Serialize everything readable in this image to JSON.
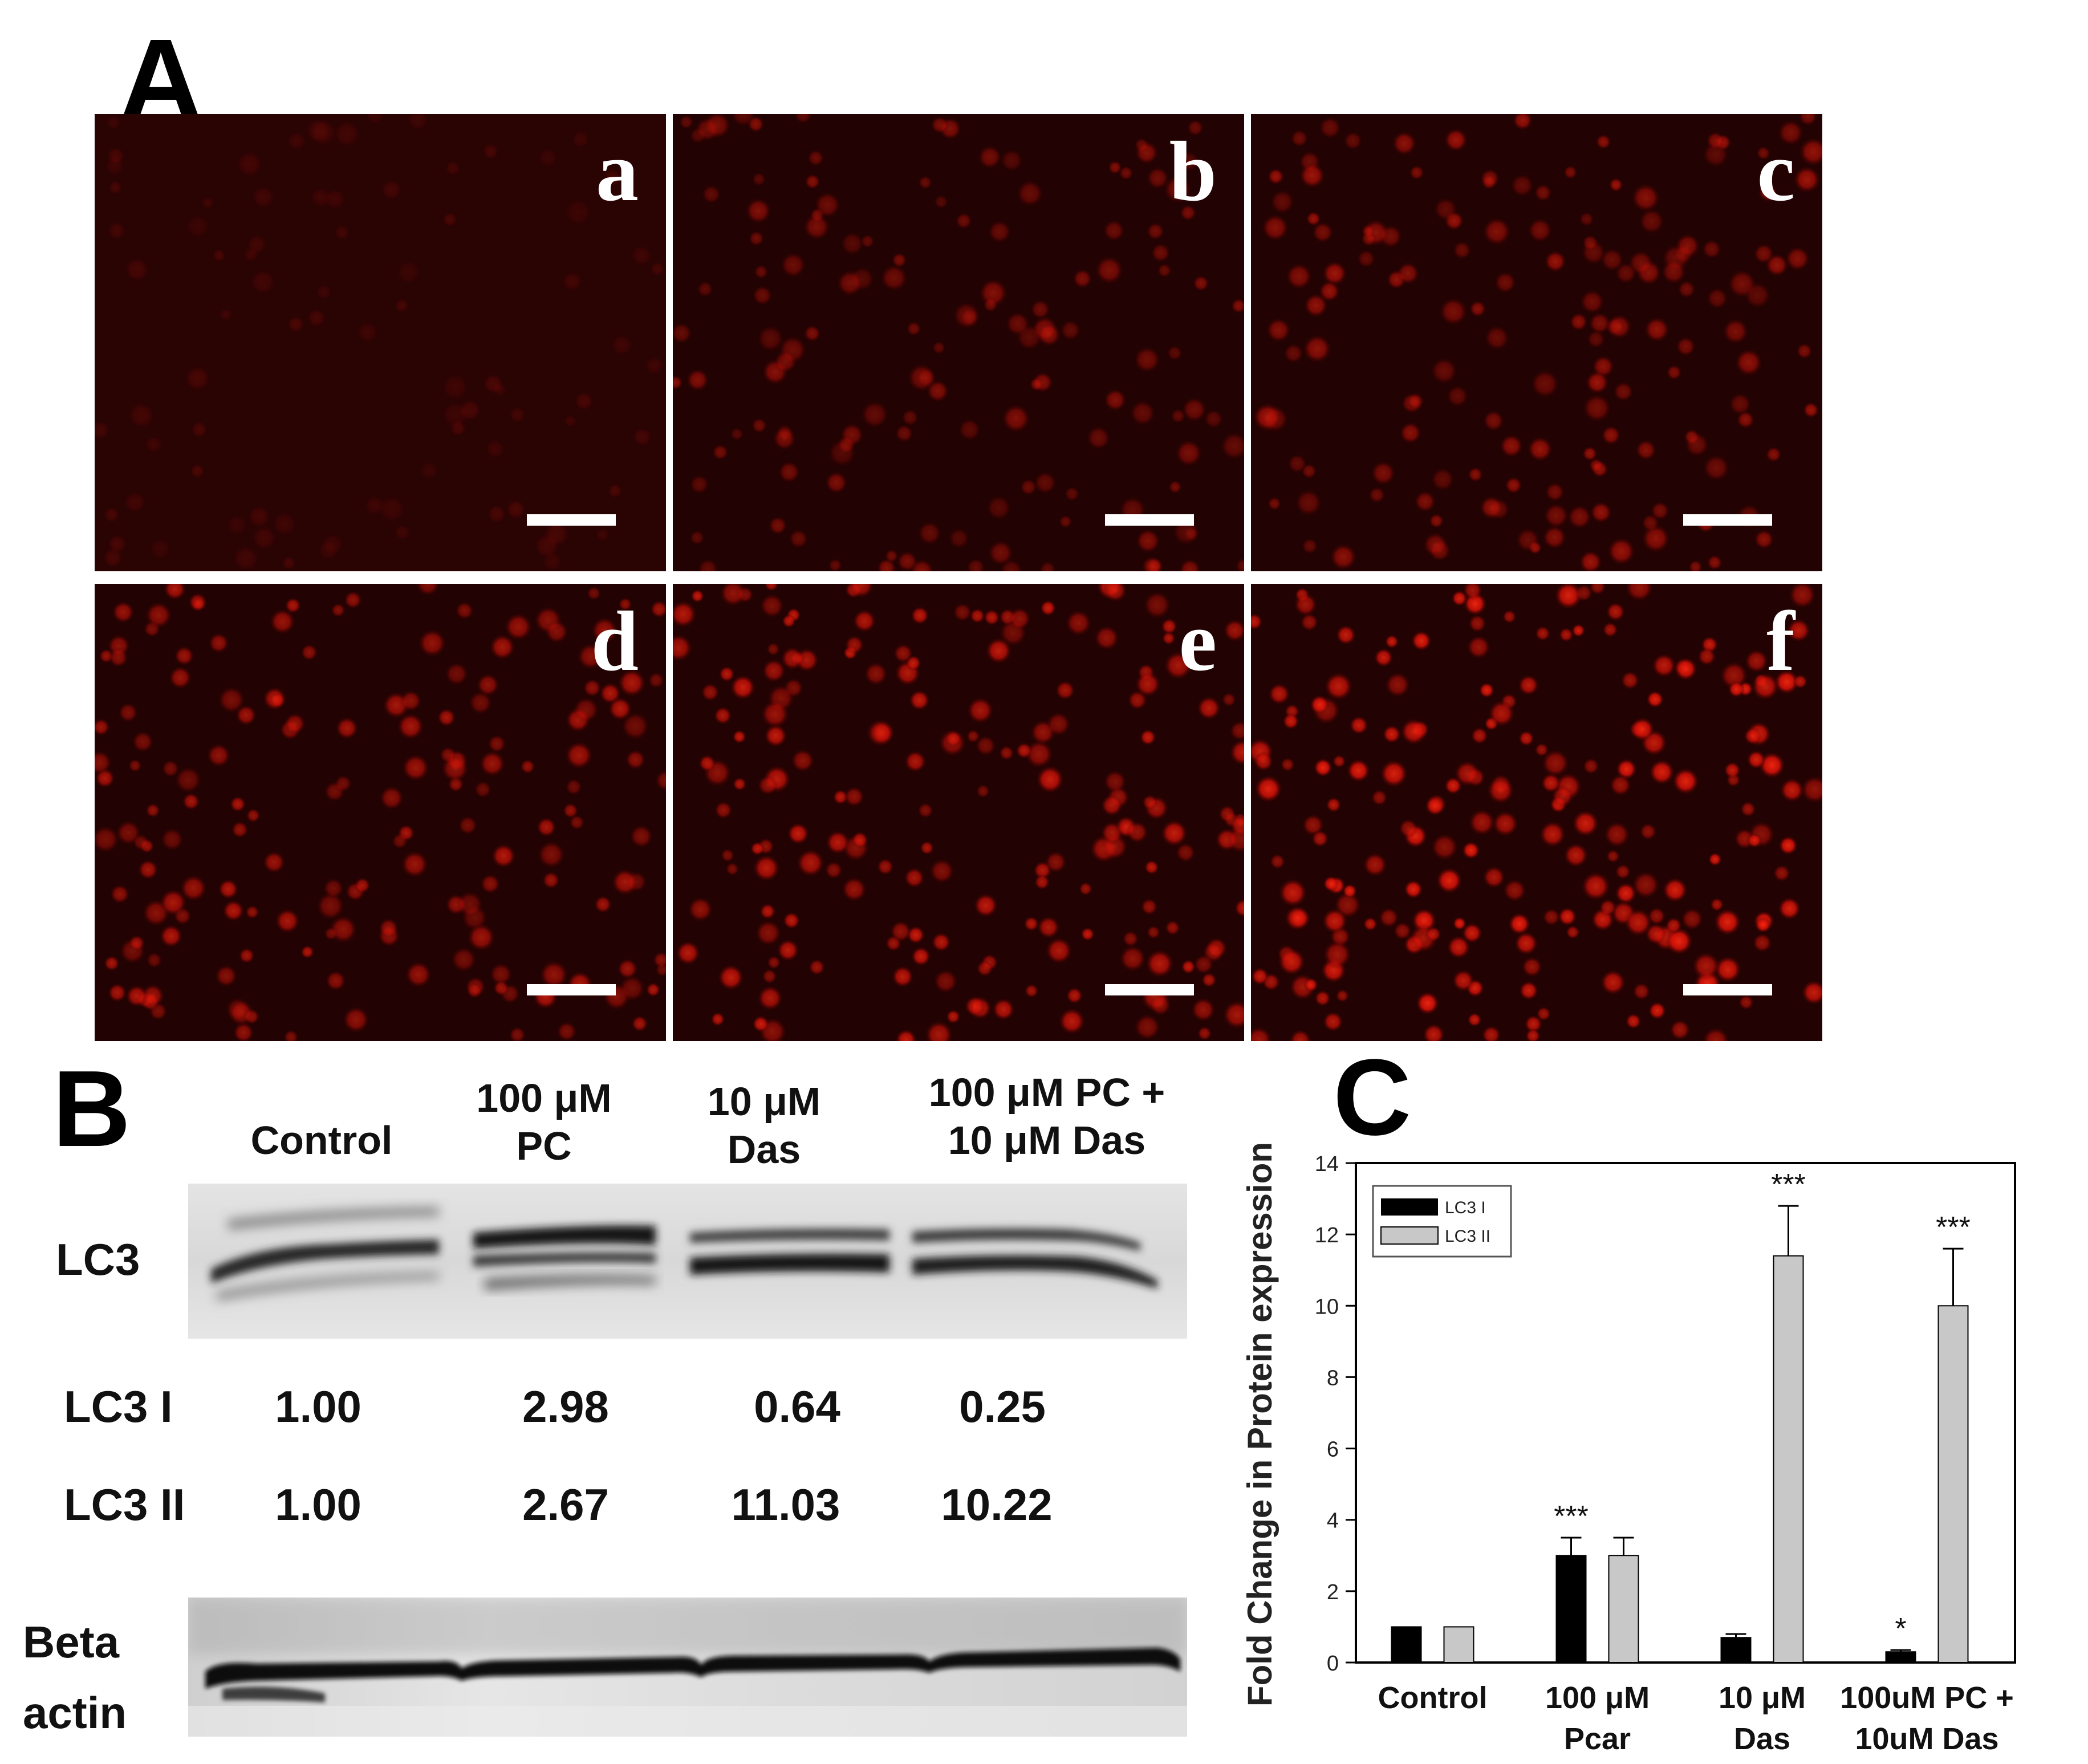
{
  "panel_a": {
    "letter": "A",
    "images": [
      {
        "letter": "a",
        "intensity": 0.15
      },
      {
        "letter": "b",
        "intensity": 0.45
      },
      {
        "letter": "c",
        "intensity": 0.55
      },
      {
        "letter": "d",
        "intensity": 0.65
      },
      {
        "letter": "e",
        "intensity": 0.75
      },
      {
        "letter": "f",
        "intensity": 0.9
      }
    ]
  },
  "panel_b": {
    "letter": "B",
    "lanes": [
      {
        "line1": "Control",
        "line2": ""
      },
      {
        "line1": "100 μM",
        "line2": "PC"
      },
      {
        "line1": "10 μM",
        "line2": "Das"
      },
      {
        "line1": "100 μM PC +",
        "line2": "10 μM Das"
      }
    ],
    "blot_label": "LC3",
    "quant_rows": [
      {
        "label": "LC3 I",
        "values": [
          "1.00",
          "2.98",
          "0.64",
          "0.25"
        ]
      },
      {
        "label": "LC3 II",
        "values": [
          "1.00",
          "2.67",
          "11.03",
          "10.22"
        ]
      }
    ],
    "loading_label_line1": "Beta",
    "loading_label_line2": "actin"
  },
  "panel_c": {
    "letter": "C"
  },
  "chart_data": {
    "type": "bar",
    "categories": [
      {
        "line1": "Control",
        "line2": ""
      },
      {
        "line1": "100 μM",
        "line2": "Pcar"
      },
      {
        "line1": "10 μM",
        "line2": "Das"
      },
      {
        "line1": "100uM PC +",
        "line2": "10uM Das"
      }
    ],
    "series": [
      {
        "name": "LC3 I",
        "color": "#000000",
        "values": [
          1.0,
          3.0,
          0.7,
          0.3
        ],
        "errors": [
          0.0,
          0.5,
          0.1,
          0.05
        ],
        "sig": [
          "",
          "***",
          "",
          "*"
        ]
      },
      {
        "name": "LC3 II",
        "color": "#c8c8c8",
        "values": [
          1.0,
          3.0,
          11.4,
          10.0
        ],
        "errors": [
          0.0,
          0.5,
          1.4,
          1.6
        ],
        "sig": [
          "",
          "",
          "***",
          "***"
        ]
      }
    ],
    "ylabel": "Fold Change in Protein expression",
    "ylim": [
      0,
      14
    ],
    "yticks": [
      "0",
      "2",
      "4",
      "6",
      "8",
      "10",
      "12",
      "14"
    ],
    "legend_position": "top-left",
    "grid": false
  }
}
